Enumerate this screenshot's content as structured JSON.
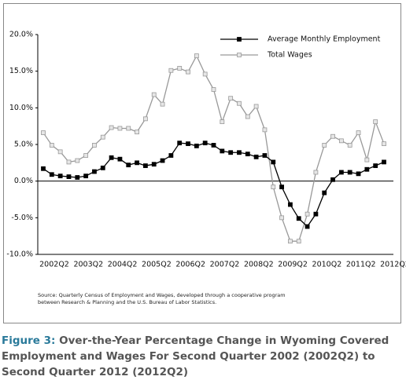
{
  "chart_data": {
    "type": "line",
    "categories": [
      "2002Q2",
      null,
      null,
      null,
      "2003Q2",
      null,
      null,
      null,
      "2004Q2",
      null,
      null,
      null,
      "2005Q2",
      null,
      null,
      null,
      "2006Q2",
      null,
      null,
      null,
      "2007Q2",
      null,
      null,
      null,
      "2008Q2",
      null,
      null,
      null,
      "2009Q2",
      null,
      null,
      null,
      "2010Q2",
      null,
      null,
      null,
      "2011Q2",
      null,
      null,
      null,
      "2012Q2"
    ],
    "series": [
      {
        "name": "Average Monthly Employment",
        "color": "#000000",
        "values": [
          1.7,
          0.9,
          0.7,
          0.6,
          0.5,
          0.7,
          1.3,
          1.8,
          3.2,
          3.0,
          2.2,
          2.5,
          2.1,
          2.3,
          2.8,
          3.5,
          5.2,
          5.1,
          4.8,
          5.2,
          4.9,
          4.1,
          3.9,
          3.9,
          3.7,
          3.3,
          3.5,
          2.6,
          -0.8,
          -3.2,
          -5.1,
          -6.2,
          -4.5,
          -1.6,
          0.2,
          1.2,
          1.2,
          1.0,
          1.6,
          2.1,
          2.6
        ]
      },
      {
        "name": "Total Wages",
        "color": "#999999",
        "values": [
          6.6,
          4.9,
          4.0,
          2.6,
          2.8,
          3.5,
          4.9,
          6.0,
          7.3,
          7.2,
          7.2,
          6.7,
          8.5,
          11.8,
          10.5,
          15.1,
          15.4,
          14.9,
          17.1,
          14.6,
          12.5,
          8.1,
          11.3,
          10.6,
          8.8,
          10.2,
          7.0,
          -0.8,
          -5.0,
          -8.2,
          -8.2,
          -4.5,
          1.2,
          4.9,
          6.1,
          5.5,
          4.9,
          6.6,
          2.9,
          8.1,
          5.1
        ]
      }
    ],
    "ylim": [
      -10,
      20
    ],
    "yticks": [
      {
        "value": -10,
        "label": "-10.0%"
      },
      {
        "value": -5,
        "label": "-5.0%"
      },
      {
        "value": 0,
        "label": "0.0%"
      },
      {
        "value": 5,
        "label": "5.0%"
      },
      {
        "value": 10,
        "label": "10.0%"
      },
      {
        "value": 15,
        "label": "15.0%"
      },
      {
        "value": 20,
        "label": "20.0%"
      }
    ],
    "legend": "upper right",
    "source": "Source: Quarterly Census of Employment and Wages, developed through a cooperative program between Research & Planning and the U.S. Bureau of Labor Statistics."
  },
  "caption": {
    "label": "Figure 3:",
    "text": "Over-the-Year Percentage Change in Wyoming Covered Employment and Wages For Second Quarter 2002 (2002Q2) to Second Quarter 2012 (2012Q2)"
  }
}
